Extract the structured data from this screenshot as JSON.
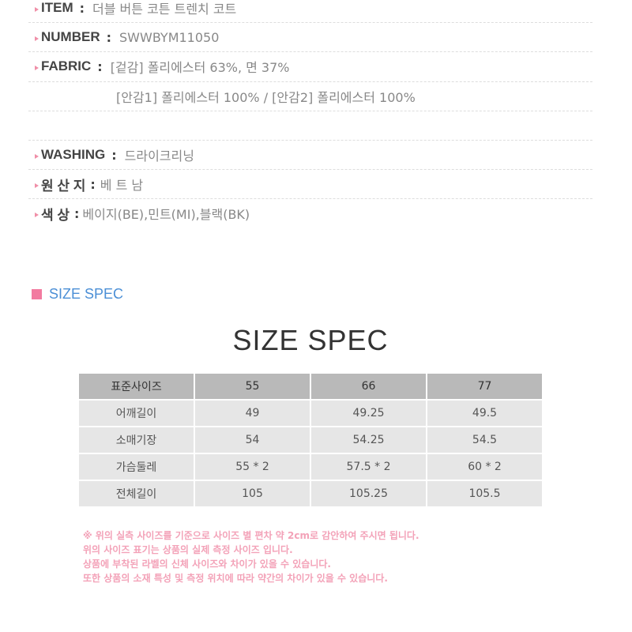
{
  "info": [
    {
      "label": "ITEM",
      "value": "더블 버튼 코튼 트렌치 코트"
    },
    {
      "label": "NUMBER",
      "value": "SWWBYM11050"
    },
    {
      "label": "FABRIC",
      "value": "[겉감] 폴리에스터 63%, 면 37%"
    },
    {
      "label": "",
      "value": "[안감1] 폴리에스터 100% / [안감2] 폴리에스터 100%"
    },
    {
      "label": "WASHING",
      "value": "드라이크리닝"
    },
    {
      "label": "원 산 지",
      "value": "베 트 남"
    },
    {
      "label": "색 상",
      "value": "베이지(BE),민트(MI),블랙(BK)"
    }
  ],
  "colon": ":",
  "section_heading": "SIZE SPEC",
  "table_title": "SIZE SPEC",
  "table": {
    "header": [
      "표준사이즈",
      "55",
      "66",
      "77"
    ],
    "rows": [
      [
        "어깨길이",
        "49",
        "49.25",
        "49.5"
      ],
      [
        "소매기장",
        "54",
        "54.25",
        "54.5"
      ],
      [
        "가슴둘레",
        "55 * 2",
        "57.5 * 2",
        "60 * 2"
      ],
      [
        "전체길이",
        "105",
        "105.25",
        "105.5"
      ]
    ]
  },
  "notes": [
    "※  위의 실측 사이즈를 기준으로 사이즈 별 편차 약 2cm로 감안하여 주시면 됩니다.",
    "위의 사이즈 표기는 상품의 실제 측정 사이즈 입니다.",
    "상품에 부착된 라벨의 신체 사이즈와 차이가 있을 수 있습니다.",
    "또한 상품의 소재 특성 및 측정 위치에 따라 약간의 차이가 있을 수 있습니다."
  ],
  "colors": {
    "accent_pink": "#f27ba0",
    "heading_blue": "#4b8fd6",
    "header_gray": "#b9b9b9",
    "cell_gray": "#e6e6e6"
  }
}
